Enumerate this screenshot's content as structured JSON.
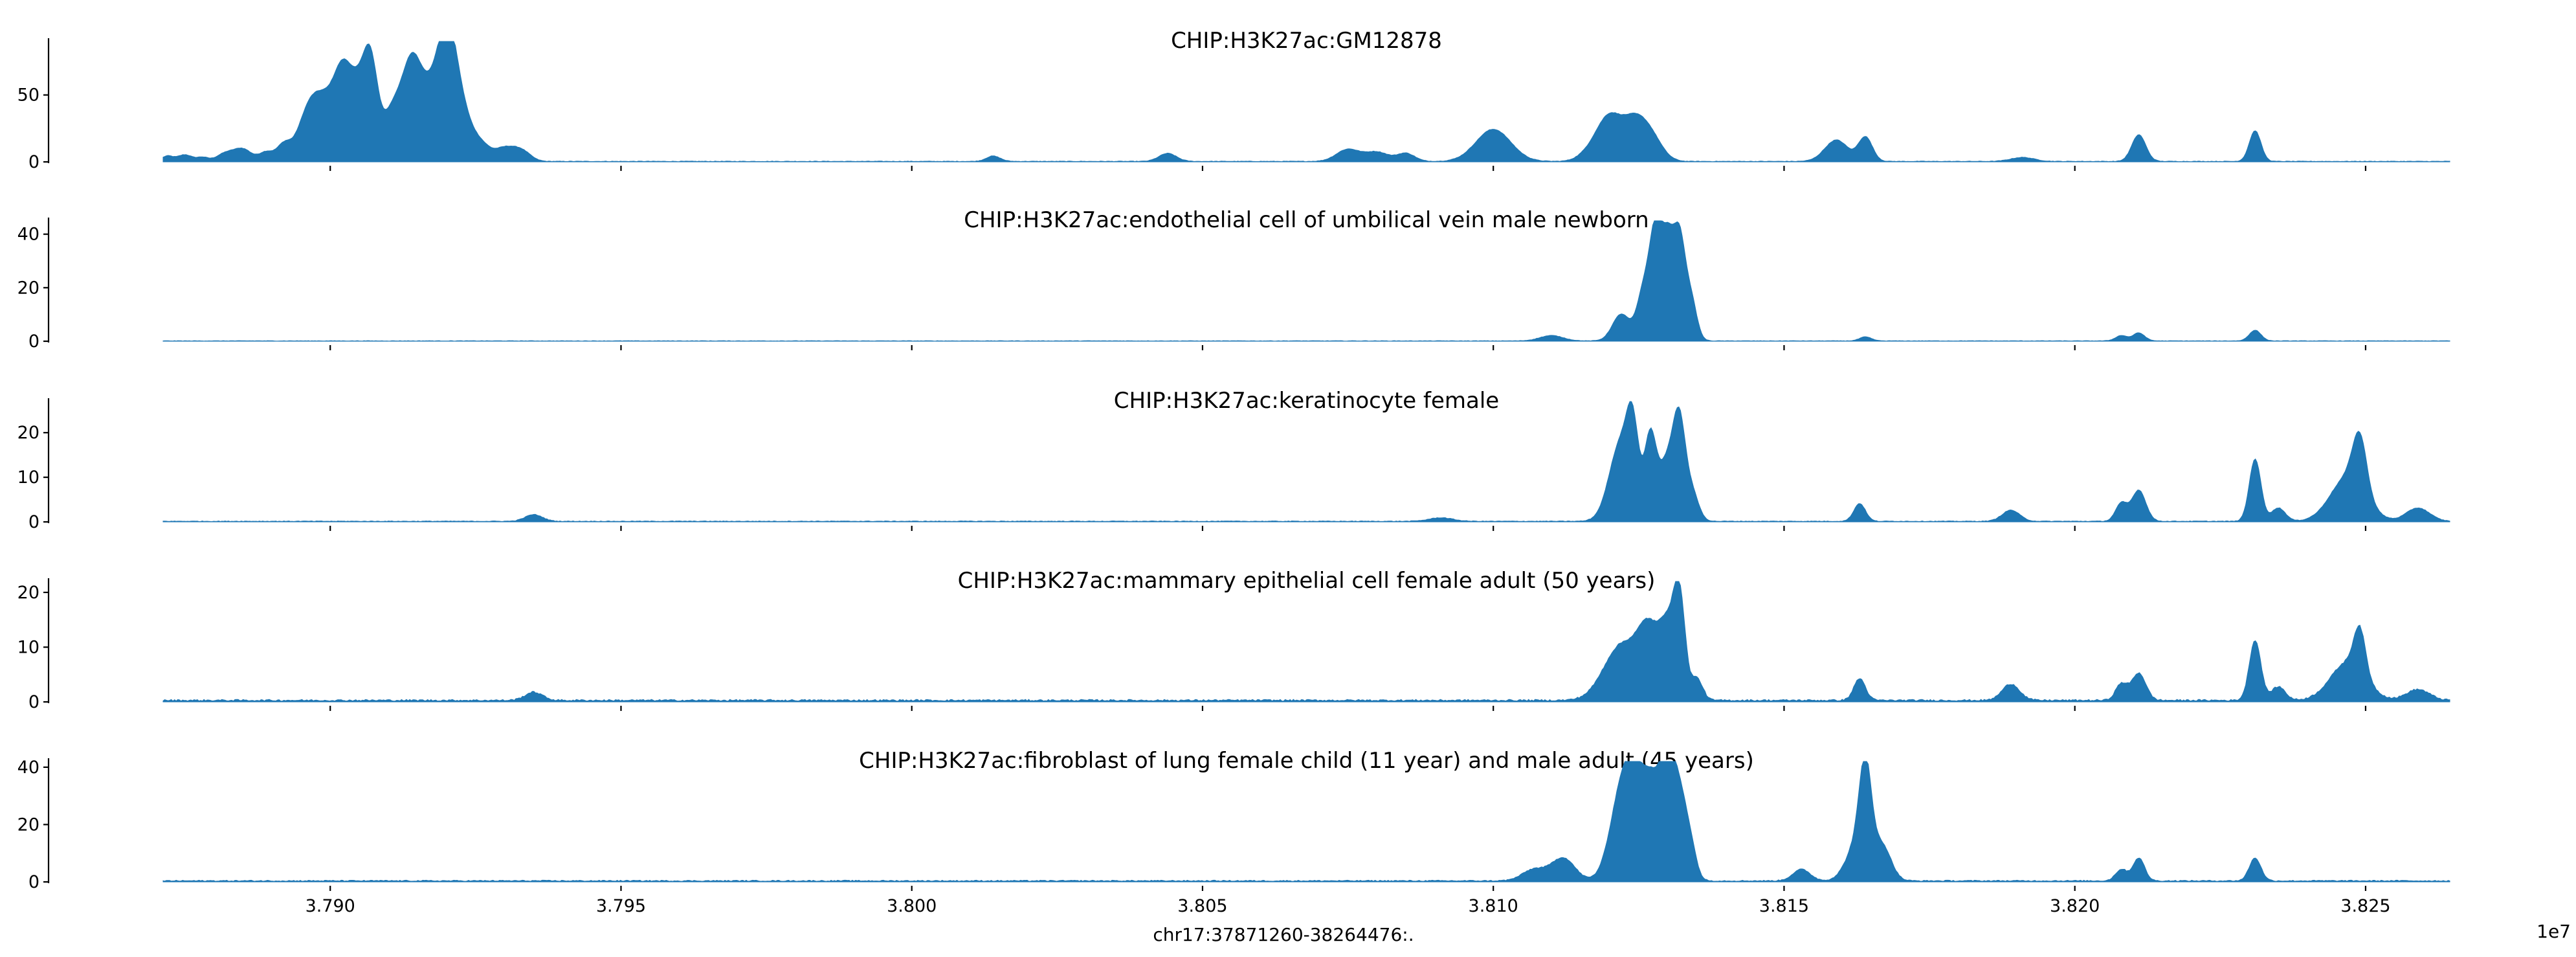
{
  "chart_data": {
    "type": "area",
    "color": "#1f77b4",
    "xlabel": "chr17:37871260-38264476:.",
    "x_offset_label": "1e7",
    "xlim": [
      3.787126,
      3.8264476
    ],
    "x_ticks": [
      3.79,
      3.795,
      3.8,
      3.805,
      3.81,
      3.815,
      3.82,
      3.825
    ],
    "x_tick_labels": [
      "3.790",
      "3.795",
      "3.800",
      "3.805",
      "3.810",
      "3.815",
      "3.820",
      "3.825"
    ],
    "grid": false,
    "panels": [
      {
        "title": "CHIP:H3K27ac:GM12878",
        "ylim": [
          0,
          90
        ],
        "y_ticks": [
          0,
          50
        ],
        "y_tick_labels": [
          "0",
          "50"
        ],
        "noise": 0.4,
        "peaks": [
          {
            "x": 3.7872,
            "h": 4,
            "w": 0.0001
          },
          {
            "x": 3.7875,
            "h": 5,
            "w": 0.00012
          },
          {
            "x": 3.7878,
            "h": 3,
            "w": 0.0001
          },
          {
            "x": 3.7882,
            "h": 6,
            "w": 0.00015
          },
          {
            "x": 3.7885,
            "h": 9,
            "w": 0.00015
          },
          {
            "x": 3.7889,
            "h": 7,
            "w": 0.00012
          },
          {
            "x": 3.7892,
            "h": 12,
            "w": 0.00012
          },
          {
            "x": 3.7896,
            "h": 30,
            "w": 0.00018
          },
          {
            "x": 3.7899,
            "h": 40,
            "w": 0.0002
          },
          {
            "x": 3.7902,
            "h": 45,
            "w": 0.00015
          },
          {
            "x": 3.7905,
            "h": 55,
            "w": 0.0002
          },
          {
            "x": 3.7907,
            "h": 48,
            "w": 0.00012
          },
          {
            "x": 3.7911,
            "h": 40,
            "w": 0.00018
          },
          {
            "x": 3.7914,
            "h": 55,
            "w": 0.00015
          },
          {
            "x": 3.7917,
            "h": 50,
            "w": 0.0002
          },
          {
            "x": 3.792,
            "h": 65,
            "w": 0.00015
          },
          {
            "x": 3.7922,
            "h": 45,
            "w": 0.0002
          },
          {
            "x": 3.7926,
            "h": 10,
            "w": 0.00015
          },
          {
            "x": 3.793,
            "h": 10,
            "w": 0.00018
          },
          {
            "x": 3.7933,
            "h": 7,
            "w": 0.00015
          },
          {
            "x": 3.8014,
            "h": 4,
            "w": 0.00012
          },
          {
            "x": 3.8044,
            "h": 6,
            "w": 0.00015
          },
          {
            "x": 3.8075,
            "h": 9,
            "w": 0.0002
          },
          {
            "x": 3.808,
            "h": 7,
            "w": 0.0002
          },
          {
            "x": 3.8085,
            "h": 6,
            "w": 0.00015
          },
          {
            "x": 3.81,
            "h": 24,
            "w": 0.0003
          },
          {
            "x": 3.8117,
            "h": 8,
            "w": 0.0002
          },
          {
            "x": 3.812,
            "h": 30,
            "w": 0.0002
          },
          {
            "x": 3.8124,
            "h": 26,
            "w": 0.0002
          },
          {
            "x": 3.8127,
            "h": 18,
            "w": 0.0002
          },
          {
            "x": 3.8159,
            "h": 16,
            "w": 0.0002
          },
          {
            "x": 3.8164,
            "h": 18,
            "w": 0.00012
          },
          {
            "x": 3.8191,
            "h": 3,
            "w": 0.0002
          },
          {
            "x": 3.8211,
            "h": 20,
            "w": 0.00012
          },
          {
            "x": 3.8231,
            "h": 23,
            "w": 0.0001
          }
        ]
      },
      {
        "title": "CHIP:H3K27ac:endothelial cell of umbilical vein male newborn",
        "ylim": [
          0,
          45
        ],
        "y_ticks": [
          0,
          20,
          40
        ],
        "y_tick_labels": [
          "0",
          "20",
          "40"
        ],
        "noise": 0.15,
        "peaks": [
          {
            "x": 3.811,
            "h": 2,
            "w": 0.0002
          },
          {
            "x": 3.8122,
            "h": 10,
            "w": 0.00015
          },
          {
            "x": 3.8126,
            "h": 20,
            "w": 0.00012
          },
          {
            "x": 3.8128,
            "h": 38,
            "w": 0.0001
          },
          {
            "x": 3.813,
            "h": 34,
            "w": 0.0001
          },
          {
            "x": 3.8132,
            "h": 37,
            "w": 0.0001
          },
          {
            "x": 3.8134,
            "h": 15,
            "w": 0.0001
          },
          {
            "x": 3.8164,
            "h": 1.5,
            "w": 0.0001
          },
          {
            "x": 3.8208,
            "h": 2,
            "w": 0.0001
          },
          {
            "x": 3.8211,
            "h": 3,
            "w": 0.0001
          },
          {
            "x": 3.8231,
            "h": 4,
            "w": 0.0001
          }
        ]
      },
      {
        "title": "CHIP:H3K27ac:keratinocyte female",
        "ylim": [
          0,
          27
        ],
        "y_ticks": [
          0,
          10,
          20
        ],
        "y_tick_labels": [
          "0",
          "10",
          "20"
        ],
        "noise": 0.15,
        "peaks": [
          {
            "x": 3.7935,
            "h": 1.5,
            "w": 0.00015
          },
          {
            "x": 3.8091,
            "h": 0.8,
            "w": 0.0002
          },
          {
            "x": 3.8122,
            "h": 18,
            "w": 0.0002
          },
          {
            "x": 3.8124,
            "h": 15,
            "w": 0.0001
          },
          {
            "x": 3.8127,
            "h": 18,
            "w": 0.0001
          },
          {
            "x": 3.813,
            "h": 14,
            "w": 0.00015
          },
          {
            "x": 3.8132,
            "h": 18,
            "w": 0.0001
          },
          {
            "x": 3.8134,
            "h": 7,
            "w": 0.00012
          },
          {
            "x": 3.8163,
            "h": 4,
            "w": 0.0001
          },
          {
            "x": 3.8189,
            "h": 2.5,
            "w": 0.00015
          },
          {
            "x": 3.8208,
            "h": 4,
            "w": 0.0001
          },
          {
            "x": 3.8211,
            "h": 7,
            "w": 0.00012
          },
          {
            "x": 3.8231,
            "h": 14,
            "w": 0.0001
          },
          {
            "x": 3.8235,
            "h": 3,
            "w": 0.00012
          },
          {
            "x": 3.8247,
            "h": 10,
            "w": 0.0003
          },
          {
            "x": 3.8249,
            "h": 12,
            "w": 0.00012
          },
          {
            "x": 3.8259,
            "h": 3,
            "w": 0.0002
          }
        ]
      },
      {
        "title": "CHIP:H3K27ac:mammary epithelial cell female adult (50 years)",
        "ylim": [
          0,
          22
        ],
        "y_ticks": [
          0,
          10,
          20
        ],
        "y_tick_labels": [
          "0",
          "10",
          "20"
        ],
        "noise": 0.3,
        "peaks": [
          {
            "x": 3.7935,
            "h": 1.5,
            "w": 0.00015
          },
          {
            "x": 3.8122,
            "h": 10,
            "w": 0.0003
          },
          {
            "x": 3.8127,
            "h": 12,
            "w": 0.0002
          },
          {
            "x": 3.813,
            "h": 10,
            "w": 0.00012
          },
          {
            "x": 3.8132,
            "h": 19,
            "w": 0.0001
          },
          {
            "x": 3.8135,
            "h": 4,
            "w": 0.0001
          },
          {
            "x": 3.8163,
            "h": 4,
            "w": 0.0001
          },
          {
            "x": 3.8189,
            "h": 3,
            "w": 0.00015
          },
          {
            "x": 3.8208,
            "h": 3,
            "w": 0.0001
          },
          {
            "x": 3.8211,
            "h": 5,
            "w": 0.00012
          },
          {
            "x": 3.8231,
            "h": 11,
            "w": 0.0001
          },
          {
            "x": 3.8235,
            "h": 2.5,
            "w": 0.00012
          },
          {
            "x": 3.8247,
            "h": 7,
            "w": 0.0003
          },
          {
            "x": 3.8249,
            "h": 8,
            "w": 0.0001
          },
          {
            "x": 3.8259,
            "h": 2,
            "w": 0.0002
          }
        ]
      },
      {
        "title": "CHIP:H3K27ac:fibroblast of lung female child (11 year) and male adult (45 years)",
        "ylim": [
          0,
          42
        ],
        "y_ticks": [
          0,
          20,
          40
        ],
        "y_tick_labels": [
          "0",
          "20",
          "40"
        ],
        "noise": 0.4,
        "peaks": [
          {
            "x": 3.8107,
            "h": 4,
            "w": 0.0002
          },
          {
            "x": 3.8112,
            "h": 8,
            "w": 0.0002
          },
          {
            "x": 3.8122,
            "h": 28,
            "w": 0.0002
          },
          {
            "x": 3.8125,
            "h": 30,
            "w": 0.0002
          },
          {
            "x": 3.8128,
            "h": 25,
            "w": 0.00015
          },
          {
            "x": 3.813,
            "h": 35,
            "w": 0.0001
          },
          {
            "x": 3.8132,
            "h": 30,
            "w": 0.00012
          },
          {
            "x": 3.8134,
            "h": 10,
            "w": 0.0001
          },
          {
            "x": 3.8153,
            "h": 4,
            "w": 0.00015
          },
          {
            "x": 3.8163,
            "h": 15,
            "w": 0.0002
          },
          {
            "x": 3.8164,
            "h": 30,
            "w": 0.0001
          },
          {
            "x": 3.8167,
            "h": 11,
            "w": 0.00015
          },
          {
            "x": 3.8208,
            "h": 4,
            "w": 0.0001
          },
          {
            "x": 3.8211,
            "h": 8,
            "w": 0.0001
          },
          {
            "x": 3.8231,
            "h": 8,
            "w": 0.0001
          }
        ]
      }
    ]
  }
}
